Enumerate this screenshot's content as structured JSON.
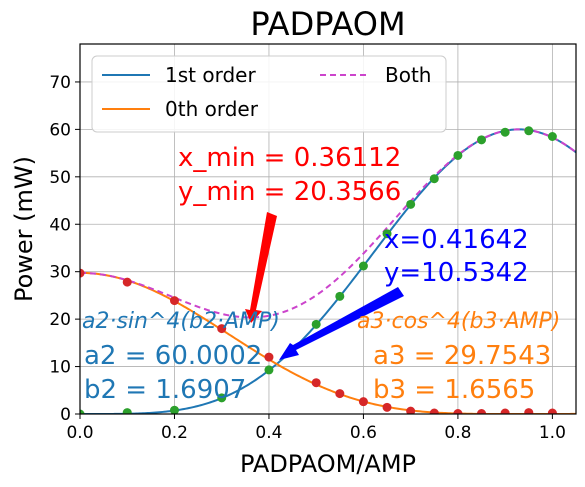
{
  "chart_data": {
    "type": "line",
    "title": "PADPAOM",
    "xlabel": "PADPAOM/AMP",
    "ylabel": "Power (mW)",
    "xlim": [
      0.0,
      1.05
    ],
    "ylim": [
      0,
      78
    ],
    "xticks": [
      "0.0",
      "0.2",
      "0.4",
      "0.6",
      "0.8",
      "1.0"
    ],
    "yticks": [
      "0",
      "10",
      "20",
      "30",
      "40",
      "50",
      "60",
      "70"
    ],
    "grid": true,
    "legend_position": "top-left",
    "fit_params": {
      "a2": 60.0002,
      "b2": 1.6907,
      "a3": 29.7543,
      "b3": 1.6565
    },
    "series": [
      {
        "name": "1st order",
        "style": "solid",
        "color": "#1f77b4",
        "formula": "a2*sin^4(b2*x)"
      },
      {
        "name": "0th order",
        "style": "solid",
        "color": "#ff7f0e",
        "formula": "a3*cos^4(b3*x)"
      },
      {
        "name": "Both",
        "style": "dashed",
        "color": "#cc44cc",
        "formula": "a2*sin^4(b2*x)+a3*cos^4(b3*x)"
      }
    ],
    "measured_first_order": {
      "color": "#2ca02c",
      "x": [
        0.0,
        0.1,
        0.2,
        0.3,
        0.4,
        0.5,
        0.55,
        0.6,
        0.65,
        0.7,
        0.75,
        0.8,
        0.85,
        0.9,
        0.95,
        1.0
      ],
      "y": [
        0.0,
        0.3,
        0.8,
        3.4,
        9.3,
        18.9,
        24.8,
        31.2,
        38.0,
        44.2,
        49.6,
        54.5,
        57.8,
        59.4,
        59.7,
        58.5
      ]
    },
    "measured_zeroth_order": {
      "color": "#d62728",
      "x": [
        0.0,
        0.1,
        0.2,
        0.3,
        0.4,
        0.5,
        0.55,
        0.6,
        0.65,
        0.7,
        0.75,
        0.8,
        0.85,
        0.9,
        0.95,
        1.0
      ],
      "y": [
        29.7,
        27.8,
        23.9,
        18.0,
        12.0,
        6.6,
        4.3,
        2.6,
        1.4,
        0.6,
        0.2,
        0.1,
        0.1,
        0.2,
        0.3,
        0.2
      ]
    },
    "annotations": {
      "min_marker": {
        "line1": "x_min = 0.36112",
        "line2": "y_min = 20.3566",
        "color": "#ff0000",
        "x": 0.36112,
        "y": 20.3566
      },
      "cross_marker": {
        "line1": "x=0.41642",
        "line2": "y=10.5342",
        "color": "#0000ff",
        "x": 0.41642,
        "y": 10.5342
      },
      "fit_first": {
        "formula": "a2·sin^4(b2·AMP)",
        "a_line": "a2 = 60.0002",
        "b_line": "b2 = 1.6907",
        "color": "#1f77b4"
      },
      "fit_zeroth": {
        "formula": "a3·cos^4(b3·AMP)",
        "a_line": "a3 = 29.7543",
        "b_line": "b3 = 1.6565",
        "color": "#ff7f0e"
      }
    }
  }
}
